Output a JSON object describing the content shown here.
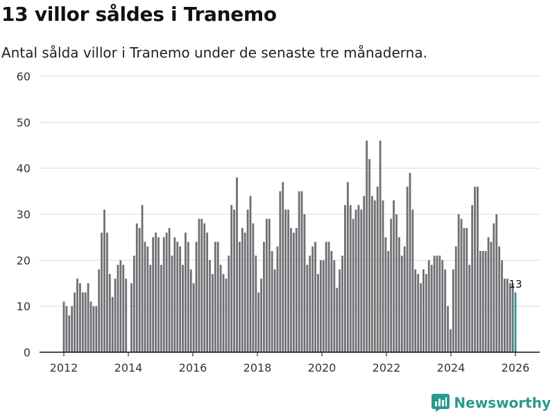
{
  "header": {
    "title": "13 villor såldes i Tranemo",
    "subtitle": "Antal sålda villor i Tranemo under de senaste tre månaderna."
  },
  "brand": {
    "name": "Newsworthy",
    "color": "#2a9a8f"
  },
  "chart_data": {
    "type": "bar",
    "title": "13 villor såldes i Tranemo",
    "xlabel": "",
    "ylabel": "",
    "ylim": [
      0,
      60
    ],
    "yticks": [
      0,
      10,
      20,
      30,
      40,
      50,
      60
    ],
    "xticks": [
      "2012",
      "2014",
      "2016",
      "2018",
      "2020",
      "2022",
      "2024",
      "2026"
    ],
    "x_start": 2012.0,
    "x_end": 2026.0,
    "grid": true,
    "bar_color": "#6f6e73",
    "highlight_color": "#2a9a8f",
    "highlight_label": "13",
    "values": [
      11,
      10,
      8,
      10,
      13,
      16,
      15,
      13,
      13,
      15,
      11,
      10,
      10,
      18,
      26,
      31,
      26,
      17,
      12,
      16,
      19,
      20,
      19,
      16,
      0,
      15,
      21,
      28,
      27,
      32,
      24,
      23,
      19,
      25,
      26,
      25,
      19,
      25,
      26,
      27,
      21,
      25,
      24,
      23,
      19,
      26,
      24,
      18,
      15,
      24,
      29,
      29,
      28,
      26,
      20,
      17,
      24,
      24,
      19,
      17,
      16,
      21,
      32,
      31,
      38,
      24,
      27,
      26,
      31,
      34,
      28,
      21,
      13,
      16,
      24,
      29,
      29,
      22,
      18,
      23,
      35,
      37,
      31,
      31,
      27,
      26,
      27,
      35,
      35,
      30,
      19,
      21,
      23,
      24,
      17,
      20,
      20,
      24,
      24,
      22,
      20,
      14,
      18,
      21,
      32,
      37,
      32,
      29,
      31,
      32,
      31,
      34,
      46,
      42,
      34,
      33,
      36,
      46,
      33,
      25,
      22,
      29,
      33,
      30,
      25,
      21,
      23,
      36,
      39,
      31,
      18,
      17,
      15,
      18,
      17,
      20,
      19,
      21,
      21,
      21,
      20,
      18,
      10,
      5,
      18,
      23,
      30,
      29,
      27,
      27,
      19,
      32,
      36,
      36,
      22,
      22,
      22,
      25,
      24,
      28,
      30,
      23,
      20,
      16,
      16,
      15,
      15,
      13
    ]
  }
}
